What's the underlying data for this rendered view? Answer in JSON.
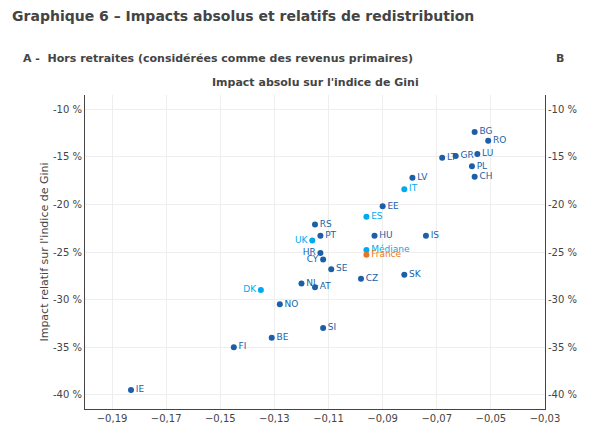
{
  "chart_data": {
    "type": "scatter",
    "title": "Graphique 6 – Impacts absolus et relatifs de redistribution",
    "subtitle": [
      "A -  Hors retraites (considérées comme des revenus primaires)",
      "B"
    ],
    "xlabel": "Impact absolu sur l'indice de Gini",
    "ylabel": "Impact relatif sur l'indice de Gini",
    "labels": [
      "IE",
      "FI",
      "BE",
      "SI",
      "NO",
      "DK",
      "NL",
      "AT",
      "CZ",
      "SK",
      "SE",
      "CY",
      "HR",
      "UK",
      "PT",
      "HU",
      "IS",
      "RS",
      "ES",
      "EE",
      "IT",
      "LV",
      "LT",
      "GR",
      "LU",
      "PL",
      "CH",
      "RO",
      "BG",
      "Médiane",
      "France"
    ],
    "x": [
      -0.183,
      -0.145,
      -0.131,
      -0.112,
      -0.128,
      -0.135,
      -0.12,
      -0.115,
      -0.098,
      -0.082,
      -0.109,
      -0.112,
      -0.113,
      -0.116,
      -0.113,
      -0.093,
      -0.074,
      -0.115,
      -0.096,
      -0.09,
      -0.082,
      -0.079,
      -0.068,
      -0.063,
      -0.055,
      -0.057,
      -0.056,
      -0.051,
      -0.056,
      -0.096,
      -0.096
    ],
    "values": [
      -0.395,
      -0.35,
      -0.34,
      -0.33,
      -0.305,
      -0.29,
      -0.283,
      -0.287,
      -0.278,
      -0.274,
      -0.268,
      -0.258,
      -0.251,
      -0.238,
      -0.233,
      -0.233,
      -0.233,
      -0.221,
      -0.213,
      -0.202,
      -0.184,
      -0.172,
      -0.151,
      -0.149,
      -0.147,
      -0.16,
      -0.171,
      -0.133,
      -0.124,
      -0.248,
      -0.253
    ],
    "label_side": [
      "right",
      "right",
      "right",
      "right",
      "right",
      "left",
      "right",
      "right",
      "right",
      "right",
      "right",
      "left",
      "left",
      "left",
      "right",
      "right",
      "right",
      "right",
      "right",
      "right",
      "right",
      "right",
      "right",
      "right",
      "right",
      "right",
      "right",
      "right",
      "right",
      "right",
      "right"
    ],
    "colors": [
      "#1a5fa8",
      "#1a5fa8",
      "#1a5fa8",
      "#1a5fa8",
      "#1a5fa8",
      "#00aaee",
      "#1a5fa8",
      "#1a5fa8",
      "#1a5fa8",
      "#1a5fa8",
      "#1a5fa8",
      "#1a5fa8",
      "#1a5fa8",
      "#00aaee",
      "#1a5fa8",
      "#1a5fa8",
      "#1a5fa8",
      "#1a5fa8",
      "#00aaee",
      "#1a5fa8",
      "#00aaee",
      "#1a5fa8",
      "#1a5fa8",
      "#1a5fa8",
      "#1a5fa8",
      "#1a5fa8",
      "#1a5fa8",
      "#1a5fa8",
      "#1a5fa8",
      "#00aaee",
      "#e87722"
    ],
    "xlim": [
      -0.2,
      -0.03
    ],
    "xticks": [
      {
        "value": -0.19,
        "label": "−0,19"
      },
      {
        "value": -0.17,
        "label": "−0,17"
      },
      {
        "value": -0.15,
        "label": "−0,15"
      },
      {
        "value": -0.13,
        "label": "−0,13"
      },
      {
        "value": -0.11,
        "label": "−0,11"
      },
      {
        "value": -0.09,
        "label": "−0,09"
      },
      {
        "value": -0.07,
        "label": "−0,07"
      },
      {
        "value": -0.05,
        "label": "−0,05"
      },
      {
        "value": -0.03,
        "label": "−0,03"
      }
    ],
    "ylim": [
      -0.415,
      -0.085
    ],
    "yticks": [
      {
        "value": -0.1,
        "label": "-10 %"
      },
      {
        "value": -0.15,
        "label": "-15 %"
      },
      {
        "value": -0.2,
        "label": "-20 %"
      },
      {
        "value": -0.25,
        "label": "-25 %"
      },
      {
        "value": -0.3,
        "label": "-30 %"
      },
      {
        "value": -0.35,
        "label": "-35 %"
      },
      {
        "value": -0.4,
        "label": "-40 %"
      }
    ],
    "y2lim": [
      -0.415,
      -0.085
    ],
    "y2ticks": [
      {
        "value": -0.1,
        "label": "-10 %"
      },
      {
        "value": -0.15,
        "label": "-15 %"
      },
      {
        "value": -0.2,
        "label": "-20 %"
      },
      {
        "value": -0.25,
        "label": "-25 %"
      },
      {
        "value": -0.3,
        "label": "-30 %"
      },
      {
        "value": -0.35,
        "label": "-35 %"
      },
      {
        "value": -0.4,
        "label": "-40 %"
      }
    ],
    "grid": true
  }
}
